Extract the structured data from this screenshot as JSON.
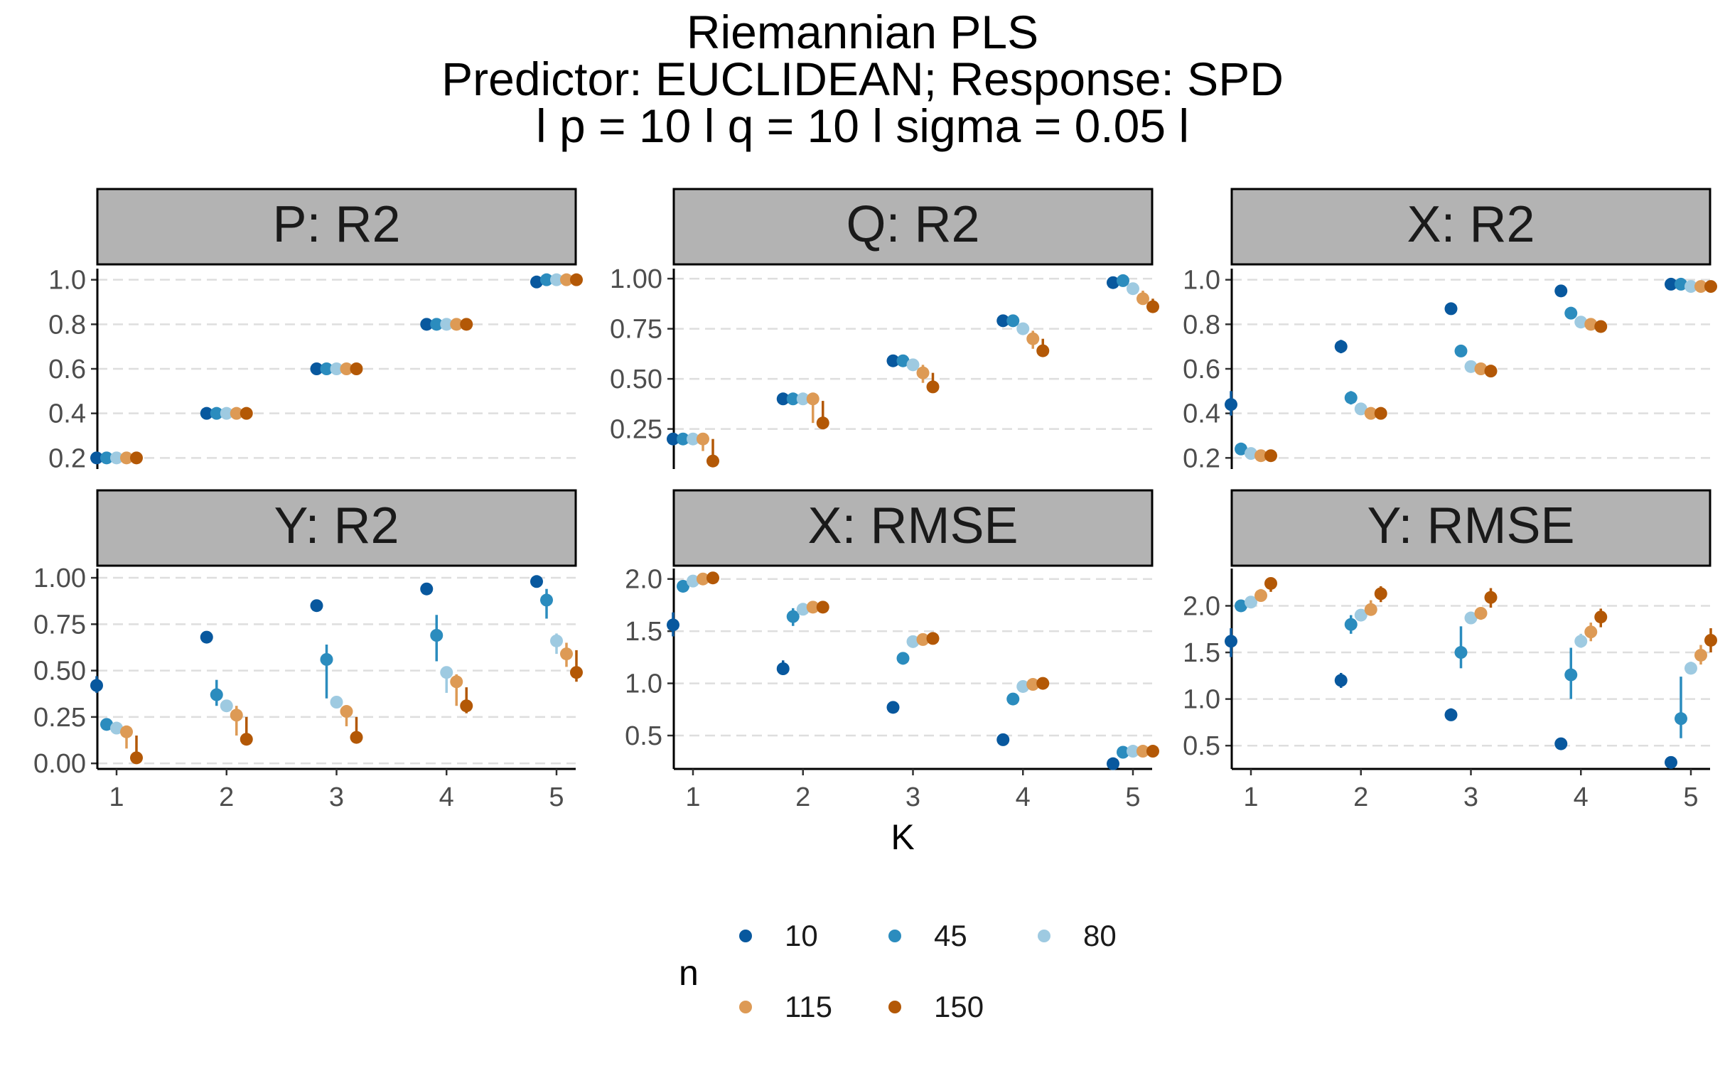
{
  "title_lines": [
    "Riemannian PLS",
    "Predictor: EUCLIDEAN; Response: SPD",
    "l p = 10 l q = 10 l sigma = 0.05 l"
  ],
  "xlabel": "K",
  "legend": {
    "title": "n",
    "items": [
      {
        "label": "10",
        "color": "#08589e"
      },
      {
        "label": "45",
        "color": "#2b8cbe"
      },
      {
        "label": "80",
        "color": "#9ecae1"
      },
      {
        "label": "115",
        "color": "#dd9a55"
      },
      {
        "label": "150",
        "color": "#b35806"
      }
    ]
  },
  "chart_data": [
    {
      "type": "scatter",
      "title": "P: R2",
      "x": [
        1,
        2,
        3,
        4,
        5
      ],
      "ylim": [
        0.15,
        1.05
      ],
      "yticks": [
        0.2,
        0.4,
        0.6,
        0.8,
        1.0
      ],
      "ytick_labels": [
        "0.2",
        "0.4",
        "0.6",
        "0.8",
        "1.0"
      ],
      "show_xaxis": false,
      "series": [
        {
          "name": "10",
          "values": [
            0.2,
            0.4,
            0.6,
            0.8,
            0.99
          ],
          "lower": [
            0.2,
            0.4,
            0.6,
            0.8,
            0.99
          ],
          "upper": [
            0.2,
            0.4,
            0.6,
            0.8,
            0.99
          ]
        },
        {
          "name": "45",
          "values": [
            0.2,
            0.4,
            0.6,
            0.8,
            1.0
          ],
          "lower": [
            0.2,
            0.4,
            0.6,
            0.8,
            1.0
          ],
          "upper": [
            0.2,
            0.4,
            0.6,
            0.8,
            1.0
          ]
        },
        {
          "name": "80",
          "values": [
            0.2,
            0.4,
            0.6,
            0.8,
            1.0
          ],
          "lower": [
            0.2,
            0.4,
            0.6,
            0.8,
            1.0
          ],
          "upper": [
            0.2,
            0.4,
            0.6,
            0.8,
            1.0
          ]
        },
        {
          "name": "115",
          "values": [
            0.2,
            0.4,
            0.6,
            0.8,
            1.0
          ],
          "lower": [
            0.2,
            0.4,
            0.6,
            0.8,
            1.0
          ],
          "upper": [
            0.2,
            0.4,
            0.6,
            0.8,
            1.0
          ]
        },
        {
          "name": "150",
          "values": [
            0.2,
            0.4,
            0.6,
            0.8,
            1.0
          ],
          "lower": [
            0.2,
            0.4,
            0.6,
            0.8,
            1.0
          ],
          "upper": [
            0.2,
            0.4,
            0.6,
            0.8,
            1.0
          ]
        }
      ]
    },
    {
      "type": "scatter",
      "title": "Q: R2",
      "x": [
        1,
        2,
        3,
        4,
        5
      ],
      "ylim": [
        0.05,
        1.05
      ],
      "yticks": [
        0.25,
        0.5,
        0.75,
        1.0
      ],
      "ytick_labels": [
        "0.25",
        "0.50",
        "0.75",
        "1.00"
      ],
      "show_xaxis": false,
      "series": [
        {
          "name": "10",
          "values": [
            0.2,
            0.4,
            0.59,
            0.79,
            0.98
          ],
          "lower": [
            0.2,
            0.4,
            0.59,
            0.79,
            0.98
          ],
          "upper": [
            0.2,
            0.4,
            0.59,
            0.79,
            0.98
          ]
        },
        {
          "name": "45",
          "values": [
            0.2,
            0.4,
            0.59,
            0.79,
            0.99
          ],
          "lower": [
            0.2,
            0.4,
            0.59,
            0.79,
            0.99
          ],
          "upper": [
            0.2,
            0.4,
            0.59,
            0.79,
            0.99
          ]
        },
        {
          "name": "80",
          "values": [
            0.2,
            0.4,
            0.57,
            0.75,
            0.95
          ],
          "lower": [
            0.2,
            0.39,
            0.55,
            0.72,
            0.93
          ],
          "upper": [
            0.2,
            0.4,
            0.59,
            0.77,
            0.97
          ]
        },
        {
          "name": "115",
          "values": [
            0.2,
            0.4,
            0.53,
            0.7,
            0.9
          ],
          "lower": [
            0.14,
            0.28,
            0.48,
            0.65,
            0.87
          ],
          "upper": [
            0.2,
            0.4,
            0.57,
            0.74,
            0.94
          ]
        },
        {
          "name": "150",
          "values": [
            0.09,
            0.28,
            0.46,
            0.64,
            0.86
          ],
          "lower": [
            0.09,
            0.28,
            0.46,
            0.64,
            0.86
          ],
          "upper": [
            0.2,
            0.39,
            0.53,
            0.7,
            0.9
          ]
        }
      ]
    },
    {
      "type": "scatter",
      "title": "X: R2",
      "x": [
        1,
        2,
        3,
        4,
        5
      ],
      "ylim": [
        0.15,
        1.05
      ],
      "yticks": [
        0.2,
        0.4,
        0.6,
        0.8,
        1.0
      ],
      "ytick_labels": [
        "0.2",
        "0.4",
        "0.6",
        "0.8",
        "1.0"
      ],
      "show_xaxis": false,
      "series": [
        {
          "name": "10",
          "values": [
            0.44,
            0.7,
            0.87,
            0.95,
            0.98
          ],
          "lower": [
            0.39,
            0.67,
            0.86,
            0.94,
            0.98
          ],
          "upper": [
            0.5,
            0.73,
            0.88,
            0.96,
            0.99
          ]
        },
        {
          "name": "45",
          "values": [
            0.24,
            0.47,
            0.68,
            0.85,
            0.98
          ],
          "lower": [
            0.23,
            0.44,
            0.67,
            0.84,
            0.97
          ],
          "upper": [
            0.25,
            0.5,
            0.7,
            0.86,
            0.99
          ]
        },
        {
          "name": "80",
          "values": [
            0.22,
            0.42,
            0.61,
            0.81,
            0.97
          ],
          "lower": [
            0.21,
            0.4,
            0.6,
            0.79,
            0.97
          ],
          "upper": [
            0.23,
            0.44,
            0.63,
            0.83,
            0.98
          ]
        },
        {
          "name": "115",
          "values": [
            0.21,
            0.4,
            0.6,
            0.8,
            0.97
          ],
          "lower": [
            0.2,
            0.39,
            0.59,
            0.79,
            0.97
          ],
          "upper": [
            0.22,
            0.42,
            0.61,
            0.82,
            0.98
          ]
        },
        {
          "name": "150",
          "values": [
            0.21,
            0.4,
            0.59,
            0.79,
            0.97
          ],
          "lower": [
            0.2,
            0.39,
            0.58,
            0.78,
            0.97
          ],
          "upper": [
            0.22,
            0.41,
            0.6,
            0.81,
            0.98
          ]
        }
      ]
    },
    {
      "type": "scatter",
      "title": "Y: R2",
      "x": [
        1,
        2,
        3,
        4,
        5
      ],
      "ylim": [
        -0.03,
        1.05
      ],
      "yticks": [
        0.0,
        0.25,
        0.5,
        0.75,
        1.0
      ],
      "ytick_labels": [
        "0.00",
        "0.25",
        "0.50",
        "0.75",
        "1.00"
      ],
      "show_xaxis": true,
      "xtick_labels": [
        "1",
        "2",
        "3",
        "4",
        "5"
      ],
      "series": [
        {
          "name": "10",
          "values": [
            0.42,
            0.68,
            0.85,
            0.94,
            0.98
          ],
          "lower": [
            0.38,
            0.66,
            0.84,
            0.93,
            0.97
          ],
          "upper": [
            0.47,
            0.7,
            0.86,
            0.95,
            0.99
          ]
        },
        {
          "name": "45",
          "values": [
            0.21,
            0.37,
            0.56,
            0.69,
            0.88
          ],
          "lower": [
            0.2,
            0.31,
            0.35,
            0.55,
            0.78
          ],
          "upper": [
            0.22,
            0.45,
            0.64,
            0.8,
            0.94
          ]
        },
        {
          "name": "80",
          "values": [
            0.19,
            0.31,
            0.33,
            0.49,
            0.66
          ],
          "lower": [
            0.18,
            0.29,
            0.3,
            0.38,
            0.59
          ],
          "upper": [
            0.2,
            0.33,
            0.36,
            0.52,
            0.7
          ]
        },
        {
          "name": "115",
          "values": [
            0.17,
            0.26,
            0.28,
            0.44,
            0.59
          ],
          "lower": [
            0.08,
            0.15,
            0.2,
            0.31,
            0.52
          ],
          "upper": [
            0.2,
            0.31,
            0.31,
            0.48,
            0.65
          ]
        },
        {
          "name": "150",
          "values": [
            0.03,
            0.13,
            0.14,
            0.31,
            0.49
          ],
          "lower": [
            0.0,
            0.1,
            0.12,
            0.27,
            0.44
          ],
          "upper": [
            0.15,
            0.25,
            0.25,
            0.41,
            0.61
          ]
        }
      ]
    },
    {
      "type": "scatter",
      "title": "X: RMSE",
      "x": [
        1,
        2,
        3,
        4,
        5
      ],
      "ylim": [
        0.18,
        2.1
      ],
      "yticks": [
        0.5,
        1.0,
        1.5,
        2.0
      ],
      "ytick_labels": [
        "0.5",
        "1.0",
        "1.5",
        "2.0"
      ],
      "show_xaxis": true,
      "xtick_labels": [
        "1",
        "2",
        "3",
        "4",
        "5"
      ],
      "series": [
        {
          "name": "10",
          "values": [
            1.56,
            1.14,
            0.77,
            0.46,
            0.23
          ],
          "lower": [
            1.45,
            1.08,
            0.74,
            0.44,
            0.22
          ],
          "upper": [
            1.68,
            1.22,
            0.81,
            0.48,
            0.24
          ]
        },
        {
          "name": "45",
          "values": [
            1.93,
            1.64,
            1.24,
            0.85,
            0.34
          ],
          "lower": [
            1.9,
            1.55,
            1.18,
            0.8,
            0.32
          ],
          "upper": [
            1.96,
            1.72,
            1.3,
            0.9,
            0.37
          ]
        },
        {
          "name": "80",
          "values": [
            1.98,
            1.71,
            1.4,
            0.97,
            0.35
          ],
          "lower": [
            1.97,
            1.68,
            1.37,
            0.95,
            0.34
          ],
          "upper": [
            2.0,
            1.73,
            1.43,
            0.99,
            0.36
          ]
        },
        {
          "name": "115",
          "values": [
            2.0,
            1.73,
            1.42,
            0.99,
            0.35
          ],
          "lower": [
            1.99,
            1.71,
            1.4,
            0.98,
            0.34
          ],
          "upper": [
            2.02,
            1.75,
            1.44,
            1.0,
            0.36
          ]
        },
        {
          "name": "150",
          "values": [
            2.01,
            1.73,
            1.43,
            1.0,
            0.35
          ],
          "lower": [
            2.0,
            1.72,
            1.41,
            0.99,
            0.34
          ],
          "upper": [
            2.02,
            1.75,
            1.45,
            1.02,
            0.37
          ]
        }
      ]
    },
    {
      "type": "scatter",
      "title": "Y: RMSE",
      "x": [
        1,
        2,
        3,
        4,
        5
      ],
      "ylim": [
        0.25,
        2.4
      ],
      "yticks": [
        0.5,
        1.0,
        1.5,
        2.0
      ],
      "ytick_labels": [
        "0.5",
        "1.0",
        "1.5",
        "2.0"
      ],
      "show_xaxis": true,
      "xtick_labels": [
        "1",
        "2",
        "3",
        "4",
        "5"
      ],
      "series": [
        {
          "name": "10",
          "values": [
            1.62,
            1.2,
            0.83,
            0.52,
            0.32
          ],
          "lower": [
            1.45,
            1.12,
            0.78,
            0.49,
            0.3
          ],
          "upper": [
            1.76,
            1.28,
            0.9,
            0.56,
            0.34
          ]
        },
        {
          "name": "45",
          "values": [
            2.0,
            1.8,
            1.5,
            1.26,
            0.79
          ],
          "lower": [
            1.96,
            1.7,
            1.33,
            1.0,
            0.58
          ],
          "upper": [
            2.04,
            1.9,
            1.78,
            1.55,
            1.24
          ]
        },
        {
          "name": "80",
          "values": [
            2.04,
            1.9,
            1.87,
            1.62,
            1.33
          ],
          "lower": [
            2.02,
            1.86,
            1.83,
            1.55,
            1.28
          ],
          "upper": [
            2.07,
            1.95,
            1.9,
            1.7,
            1.4
          ]
        },
        {
          "name": "115",
          "values": [
            2.11,
            1.96,
            1.92,
            1.72,
            1.47
          ],
          "lower": [
            2.05,
            1.9,
            1.85,
            1.62,
            1.37
          ],
          "upper": [
            2.18,
            2.06,
            1.98,
            1.82,
            1.58
          ]
        },
        {
          "name": "150",
          "values": [
            2.24,
            2.13,
            2.09,
            1.88,
            1.63
          ],
          "lower": [
            2.15,
            2.04,
            1.98,
            1.77,
            1.5
          ],
          "upper": [
            2.3,
            2.21,
            2.19,
            1.97,
            1.76
          ]
        }
      ]
    }
  ]
}
